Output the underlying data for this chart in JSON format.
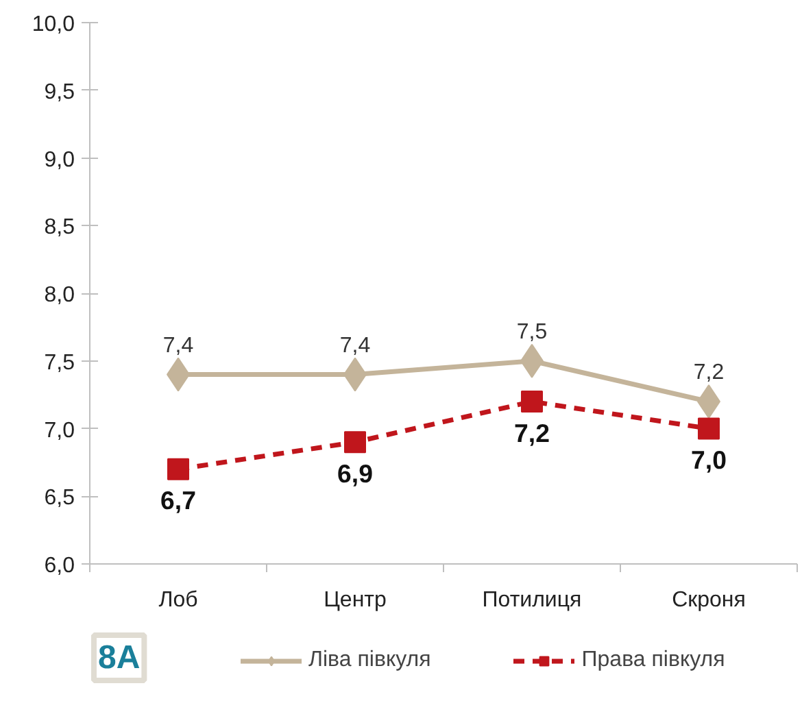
{
  "chart_data": {
    "type": "line",
    "categories": [
      "Лоб",
      "Центр",
      "Потилиця",
      "Скроня"
    ],
    "series": [
      {
        "name": "Ліва півкуля",
        "color": "#c4b49a",
        "values": [
          7.4,
          7.4,
          7.5,
          7.2
        ],
        "marker": "diamond",
        "line_style": "solid",
        "value_labels": [
          "7,4",
          "7,4",
          "7,5",
          "7,2"
        ]
      },
      {
        "name": "Права півкуля",
        "color": "#c0161c",
        "values": [
          6.7,
          6.9,
          7.2,
          7.0
        ],
        "marker": "square",
        "line_style": "dashed",
        "value_labels": [
          "6,7",
          "6,9",
          "7,2",
          "7,0"
        ]
      }
    ],
    "ylim": [
      6,
      10
    ],
    "yticks": [
      {
        "value": 6,
        "label": "6,0"
      },
      {
        "value": 6.5,
        "label": "6,5"
      },
      {
        "value": 7,
        "label": "7,0"
      },
      {
        "value": 7.5,
        "label": "7,5"
      },
      {
        "value": 8,
        "label": "8,0"
      },
      {
        "value": 8.5,
        "label": "8,5"
      },
      {
        "value": 9,
        "label": "9,0"
      },
      {
        "value": 9.5,
        "label": "9,5"
      },
      {
        "value": 10,
        "label": "10,0"
      }
    ],
    "grid": false,
    "legend": "bottom",
    "annotations": [
      "8A"
    ]
  }
}
